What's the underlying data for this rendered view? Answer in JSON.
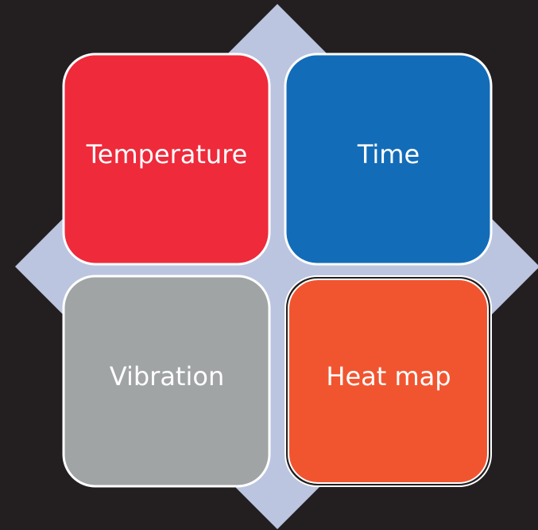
{
  "nodes": [
    {
      "label": "Temperature"
    },
    {
      "label": "Time"
    },
    {
      "label": "Vibration"
    },
    {
      "label": "Heat map"
    }
  ]
}
